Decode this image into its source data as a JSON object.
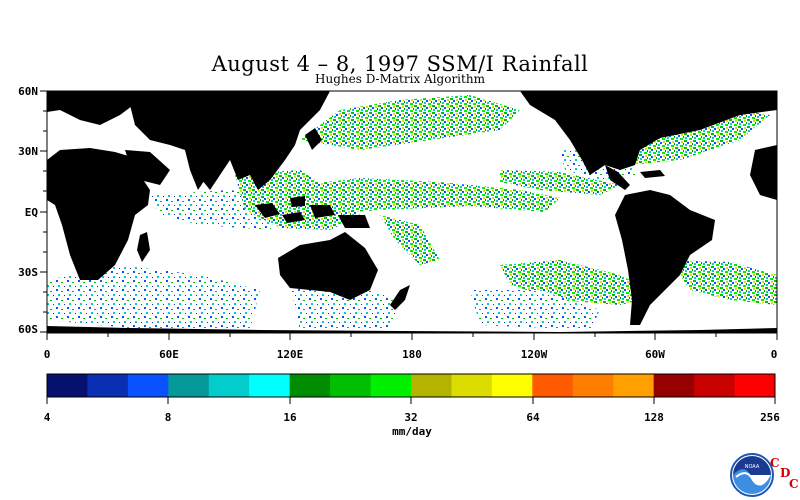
{
  "title": "August 4 – 8, 1997 SSM/I Rainfall",
  "subtitle": "Hughes D-Matrix Algorithm",
  "map": {
    "lat_ticks": [
      "60N",
      "30N",
      "EQ",
      "30S",
      "60S"
    ],
    "lon_ticks": [
      "0",
      "60E",
      "120E",
      "180",
      "120W",
      "60W",
      "0"
    ],
    "lat_range": [
      "60S",
      "60N"
    ],
    "lon_range": [
      "0",
      "360"
    ],
    "land_color": "#000000",
    "no_rain_color": "#ffffff"
  },
  "colorbar": {
    "colors": [
      "#06106e",
      "#0b2fb3",
      "#0a52ff",
      "#06999a",
      "#02cccc",
      "#00ffff",
      "#008c00",
      "#00bf00",
      "#00f000",
      "#b3b300",
      "#dcdc00",
      "#ffff00",
      "#ff5a00",
      "#ff7e00",
      "#ffa000",
      "#960000",
      "#c80000",
      "#ff0000"
    ],
    "tick_labels": [
      "4",
      "8",
      "16",
      "32",
      "64",
      "128",
      "256"
    ],
    "units": "mm/day"
  },
  "logo": {
    "name": "NOAA",
    "letters": [
      "C",
      "D",
      "C"
    ]
  }
}
